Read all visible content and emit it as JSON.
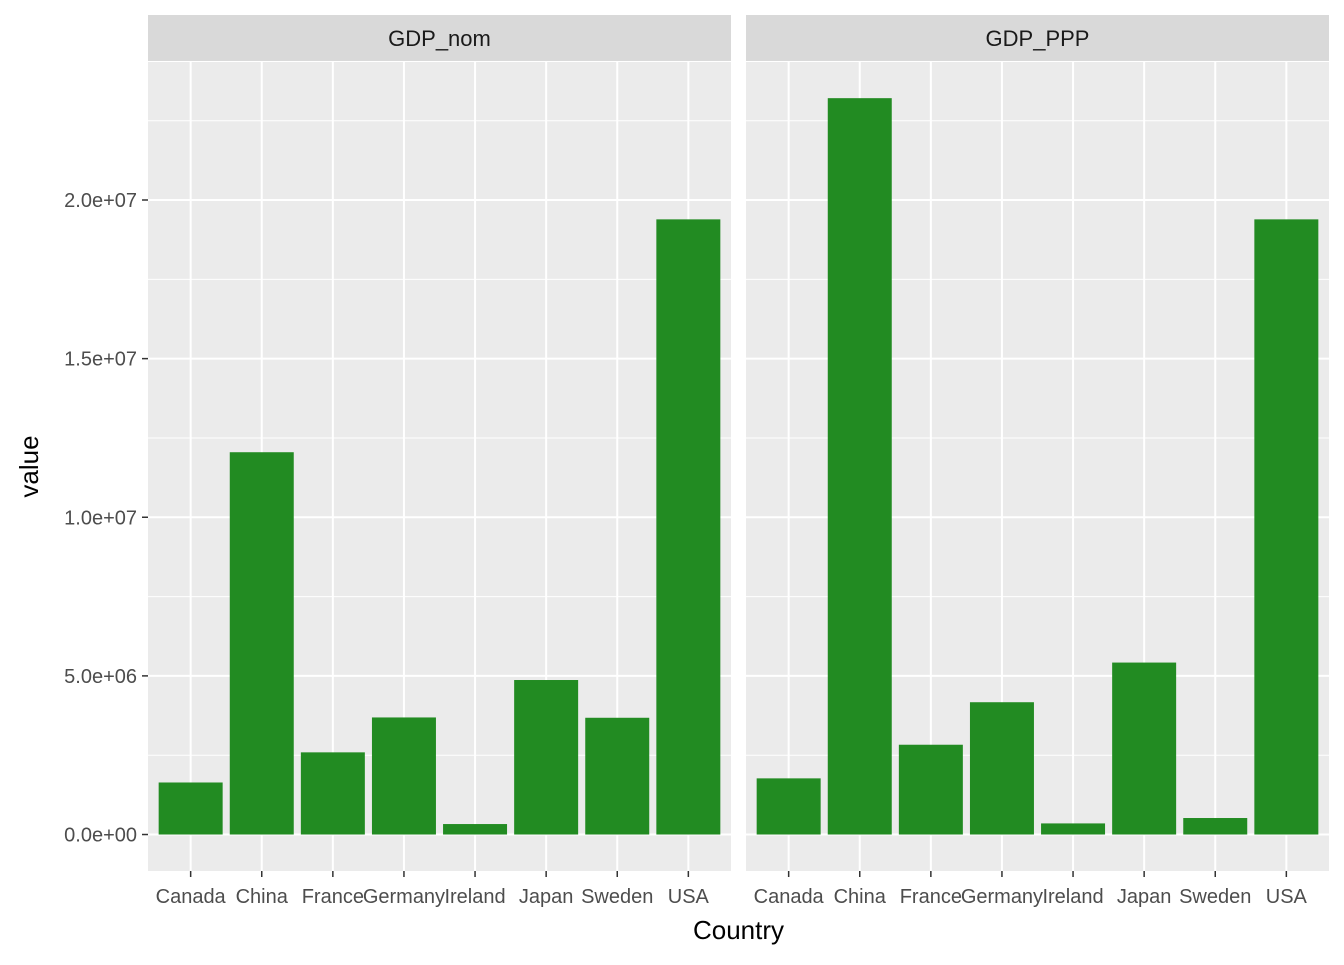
{
  "chart_data": {
    "type": "bar",
    "facet_variable": "variable",
    "categories": [
      "Canada",
      "China",
      "France",
      "Germany",
      "Ireland",
      "Japan",
      "Sweden",
      "USA"
    ],
    "panels": [
      {
        "name": "GDP_nom",
        "values": [
          1640000,
          12050000,
          2590000,
          3690000,
          330000,
          4870000,
          3680000,
          19390000
        ]
      },
      {
        "name": "GDP_PPP",
        "values": [
          1770000,
          23210000,
          2830000,
          4170000,
          350000,
          5420000,
          520000,
          19390000
        ]
      }
    ],
    "xlabel": "Country",
    "ylabel": "value",
    "ylim": [
      -1150000,
      24350000
    ],
    "yticks": [
      0,
      5000000,
      10000000,
      15000000,
      20000000
    ],
    "ytick_labels": [
      "0.0e+00",
      "5.0e+06",
      "1.0e+07",
      "1.5e+07",
      "2.0e+07"
    ],
    "bar_color": "#228B22",
    "panel_background": "#EBEBEB",
    "strip_background": "#D9D9D9",
    "grid": true,
    "legend": "none"
  }
}
